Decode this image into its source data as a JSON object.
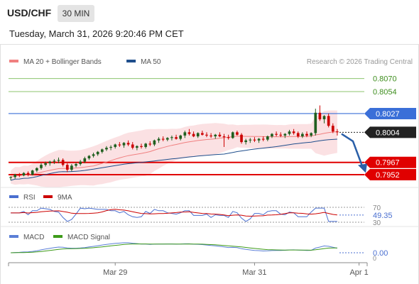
{
  "header": {
    "symbol": "USD/CHF",
    "interval": "30 MIN",
    "datetime": "Tuesday, March 31, 2026 9:20:46 PM CET"
  },
  "colors": {
    "ma20": "#f08080",
    "ma50": "#1f4e8c",
    "bollinger_fill": "#f9d7da",
    "green_level": "#8cc46e",
    "blue_level": "#3a6fd8",
    "red_level": "#e00000",
    "candle_up": "#1f5f1f",
    "candle_down": "#cc0000",
    "rsi": "#4a6fd0",
    "rsi_ma": "#cc0000",
    "macd": "#5b7fd6",
    "macd_signal": "#3e9b1a",
    "forecast_arrow": "#2a5fa8"
  },
  "chart_data": [
    {
      "type": "candlestick",
      "title": "",
      "legend": [
        {
          "name": "MA 20 + Bollinger Bands",
          "color": "#f08080"
        },
        {
          "name": "MA 50",
          "color": "#1f4e8c"
        }
      ],
      "legend_position": "top-left",
      "copyright": "Research © 2026 Trading Central",
      "ylim": [
        0.7938,
        0.8088
      ],
      "x_ticks": [
        {
          "index": 24,
          "label": "Mar 29"
        },
        {
          "index": 56,
          "label": "Mar 31"
        },
        {
          "index": 80,
          "label": "Apr 1"
        }
      ],
      "levels": [
        {
          "value": 0.807,
          "label": "0.8070",
          "kind": "resistance",
          "color": "#8cc46e"
        },
        {
          "value": 0.8054,
          "label": "0.8054",
          "kind": "resistance",
          "color": "#8cc46e"
        },
        {
          "value": 0.8027,
          "label": "0.8027",
          "kind": "pivot",
          "color": "#3a6fd8"
        },
        {
          "value": 0.8004,
          "label": "0.8004",
          "kind": "last",
          "color": "#222222"
        },
        {
          "value": 0.7967,
          "label": "0.7967",
          "kind": "target",
          "color": "#e00000"
        },
        {
          "value": 0.7952,
          "label": "0.7952",
          "kind": "target",
          "color": "#e00000"
        }
      ],
      "forecast": {
        "from": 0.8002,
        "to": 0.7955,
        "direction": "down"
      },
      "candles": [
        [
          0.7948,
          0.795,
          0.7945,
          0.7949
        ],
        [
          0.7949,
          0.7953,
          0.7947,
          0.7952
        ],
        [
          0.7952,
          0.7954,
          0.7949,
          0.7951
        ],
        [
          0.7951,
          0.7955,
          0.795,
          0.7954
        ],
        [
          0.7954,
          0.7956,
          0.795,
          0.7952
        ],
        [
          0.7952,
          0.7958,
          0.7951,
          0.7957
        ],
        [
          0.7957,
          0.7961,
          0.7955,
          0.796
        ],
        [
          0.796,
          0.7966,
          0.7958,
          0.7964
        ],
        [
          0.7964,
          0.7968,
          0.7962,
          0.7966
        ],
        [
          0.7966,
          0.7969,
          0.7963,
          0.7968
        ],
        [
          0.7968,
          0.7971,
          0.7965,
          0.7969
        ],
        [
          0.7969,
          0.7973,
          0.7966,
          0.797
        ],
        [
          0.797,
          0.7972,
          0.7962,
          0.7964
        ],
        [
          0.7964,
          0.7966,
          0.7955,
          0.7958
        ],
        [
          0.7958,
          0.7965,
          0.7956,
          0.7963
        ],
        [
          0.7963,
          0.7967,
          0.7961,
          0.7965
        ],
        [
          0.7965,
          0.797,
          0.7963,
          0.7968
        ],
        [
          0.7968,
          0.7974,
          0.7966,
          0.7972
        ],
        [
          0.7972,
          0.7976,
          0.797,
          0.7975
        ],
        [
          0.7975,
          0.7979,
          0.7973,
          0.7977
        ],
        [
          0.7977,
          0.7981,
          0.7975,
          0.798
        ],
        [
          0.798,
          0.7984,
          0.7978,
          0.7983
        ],
        [
          0.7983,
          0.7987,
          0.7981,
          0.7985
        ],
        [
          0.7985,
          0.7988,
          0.7982,
          0.7986
        ],
        [
          0.7986,
          0.799,
          0.7984,
          0.7989
        ],
        [
          0.7989,
          0.7992,
          0.7986,
          0.7988
        ],
        [
          0.7988,
          0.7992,
          0.7985,
          0.7991
        ],
        [
          0.7991,
          0.7994,
          0.7987,
          0.7989
        ],
        [
          0.7989,
          0.7992,
          0.7983,
          0.7985
        ],
        [
          0.7985,
          0.7988,
          0.7982,
          0.7987
        ],
        [
          0.7987,
          0.799,
          0.7984,
          0.7986
        ],
        [
          0.7986,
          0.7991,
          0.7984,
          0.799
        ],
        [
          0.799,
          0.7993,
          0.7987,
          0.7989
        ],
        [
          0.7989,
          0.7995,
          0.7987,
          0.7994
        ],
        [
          0.7994,
          0.7998,
          0.7991,
          0.7996
        ],
        [
          0.7996,
          0.7999,
          0.7993,
          0.7995
        ],
        [
          0.7995,
          0.7998,
          0.7993,
          0.7997
        ],
        [
          0.7997,
          0.8,
          0.7994,
          0.7998
        ],
        [
          0.7998,
          0.8001,
          0.7995,
          0.7996
        ],
        [
          0.7996,
          0.8001,
          0.7994,
          0.8
        ],
        [
          0.8,
          0.8006,
          0.7997,
          0.8004
        ],
        [
          0.8004,
          0.8008,
          0.8,
          0.8002
        ],
        [
          0.8002,
          0.8005,
          0.7998,
          0.7999
        ],
        [
          0.7999,
          0.8004,
          0.7997,
          0.8003
        ],
        [
          0.8003,
          0.8006,
          0.8,
          0.8001
        ],
        [
          0.8001,
          0.8004,
          0.7998,
          0.8
        ],
        [
          0.8,
          0.8003,
          0.7997,
          0.7999
        ],
        [
          0.7999,
          0.8002,
          0.7996,
          0.8001
        ],
        [
          0.8001,
          0.8004,
          0.7998,
          0.7999
        ],
        [
          0.7999,
          0.8002,
          0.7986,
          0.7998
        ],
        [
          0.7998,
          0.8001,
          0.7995,
          0.7997
        ],
        [
          0.7997,
          0.8005,
          0.7996,
          0.8004
        ],
        [
          0.8004,
          0.8006,
          0.8,
          0.8001
        ],
        [
          0.8001,
          0.8003,
          0.799,
          0.7992
        ],
        [
          0.7992,
          0.7996,
          0.7989,
          0.7994
        ],
        [
          0.7994,
          0.7997,
          0.7991,
          0.7995
        ],
        [
          0.7995,
          0.7998,
          0.7992,
          0.7994
        ],
        [
          0.7994,
          0.7997,
          0.7991,
          0.7996
        ],
        [
          0.7996,
          0.7999,
          0.7993,
          0.7995
        ],
        [
          0.7995,
          0.8,
          0.7993,
          0.7999
        ],
        [
          0.7999,
          0.8003,
          0.7997,
          0.8002
        ],
        [
          0.8002,
          0.8005,
          0.7999,
          0.8001
        ],
        [
          0.8001,
          0.8004,
          0.7998,
          0.8
        ],
        [
          0.8,
          0.8003,
          0.7997,
          0.8002
        ],
        [
          0.8002,
          0.8007,
          0.8,
          0.8005
        ],
        [
          0.8005,
          0.8008,
          0.8001,
          0.8003
        ],
        [
          0.8003,
          0.8005,
          0.7997,
          0.7999
        ],
        [
          0.7999,
          0.8004,
          0.7997,
          0.8002
        ],
        [
          0.8002,
          0.8005,
          0.7998,
          0.8
        ],
        [
          0.8,
          0.8004,
          0.7998,
          0.8003
        ],
        [
          0.8003,
          0.8033,
          0.8,
          0.8028
        ],
        [
          0.8028,
          0.8037,
          0.8018,
          0.802
        ],
        [
          0.802,
          0.8025,
          0.8015,
          0.8024
        ],
        [
          0.8024,
          0.8027,
          0.801,
          0.8012
        ],
        [
          0.8012,
          0.8015,
          0.8003,
          0.8005
        ],
        [
          0.8005,
          0.8008,
          0.8,
          0.8004
        ]
      ]
    },
    {
      "type": "line",
      "legend": [
        {
          "name": "RSI",
          "color": "#4a6fd0"
        },
        {
          "name": "9MA",
          "color": "#cc0000"
        }
      ],
      "levels": [
        {
          "value": 70,
          "label": "70"
        },
        {
          "value": 30,
          "label": "30"
        }
      ],
      "last_value": "49.35",
      "ylim": [
        20,
        80
      ]
    },
    {
      "type": "line",
      "legend": [
        {
          "name": "MACD",
          "color": "#5b7fd6"
        },
        {
          "name": "MACD Signal",
          "color": "#3e9b1a"
        }
      ],
      "last_value": "0.00",
      "zero_label": "0"
    }
  ]
}
